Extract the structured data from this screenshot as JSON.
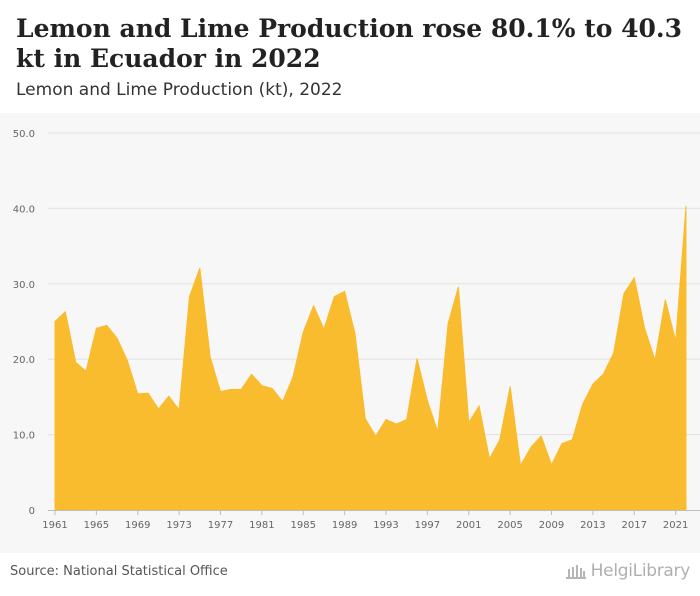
{
  "header": {
    "title": "Lemon and Lime Production rose 80.1% to 40.3 kt in Ecuador in 2022",
    "subtitle": "Lemon and Lime Production (kt), 2022"
  },
  "footer": {
    "source": "Source: National Statistical Office",
    "logo_text": "HelgiLibrary"
  },
  "colors": {
    "area_fill": "#F9BC2F",
    "plot_bg": "#f7f7f7",
    "grid": "#e2e2e2"
  },
  "chart_data": {
    "type": "area",
    "title": "Lemon and Lime Production rose 80.1% to 40.3 kt in Ecuador in 2022",
    "subtitle": "Lemon and Lime Production (kt), 2022",
    "xlabel": "",
    "ylabel": "",
    "ylim": [
      0,
      50
    ],
    "yticks": [
      "0",
      "10.0",
      "20.0",
      "30.0",
      "40.0",
      "50.0"
    ],
    "xticks": [
      "1961",
      "1965",
      "1969",
      "1973",
      "1977",
      "1981",
      "1985",
      "1989",
      "1993",
      "1997",
      "2001",
      "2005",
      "2009",
      "2013",
      "2017",
      "2021"
    ],
    "grid": true,
    "legend": "none",
    "x": [
      1961,
      1962,
      1963,
      1964,
      1965,
      1966,
      1967,
      1968,
      1969,
      1970,
      1971,
      1972,
      1973,
      1974,
      1975,
      1976,
      1977,
      1978,
      1979,
      1980,
      1981,
      1982,
      1983,
      1984,
      1985,
      1986,
      1987,
      1988,
      1989,
      1990,
      1991,
      1992,
      1993,
      1994,
      1995,
      1996,
      1997,
      1998,
      1999,
      2000,
      2001,
      2002,
      2003,
      2004,
      2005,
      2006,
      2007,
      2008,
      2009,
      2010,
      2011,
      2012,
      2013,
      2014,
      2015,
      2016,
      2017,
      2018,
      2019,
      2020,
      2021,
      2022
    ],
    "series": [
      {
        "values": [
          25.0,
          26.3,
          19.6,
          18.4,
          24.1,
          24.5,
          22.8,
          19.8,
          15.4,
          15.5,
          13.4,
          15.1,
          13.3,
          28.3,
          32.1,
          20.3,
          15.7,
          16.0,
          16.0,
          18.0,
          16.5,
          16.1,
          14.4,
          17.6,
          23.6,
          27.1,
          24.0,
          28.3,
          29.0,
          23.4,
          12.1,
          9.8,
          12.0,
          11.4,
          12.0,
          20.1,
          14.5,
          10.4,
          24.7,
          29.6,
          11.6,
          13.8,
          6.8,
          9.3,
          16.4,
          5.9,
          8.3,
          9.8,
          6.0,
          8.8,
          9.3,
          14.0,
          16.7,
          18.0,
          20.8,
          28.7,
          30.8,
          24.1,
          19.9,
          27.9,
          22.4,
          40.3
        ]
      }
    ]
  }
}
